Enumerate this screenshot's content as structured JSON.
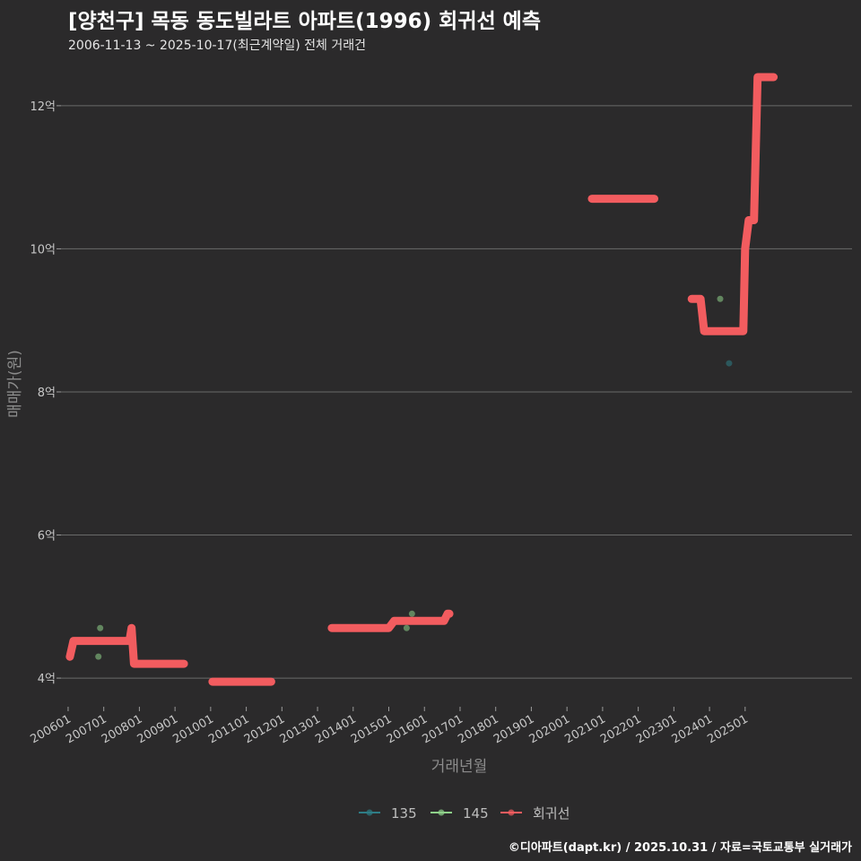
{
  "title": "[양천구] 목동 동도빌라트 아파트(1996) 회귀선 예측",
  "subtitle": "2006-11-13 ~ 2025-10-17(최근계약일) 전체 거래건",
  "caption": "©디아파트(dapt.kr) / 2025.10.31 / 자료=국토교통부 실거래가",
  "colors": {
    "background": "#2b2a2b",
    "grid": "#6a6a6a",
    "series_135": "#2e7d86",
    "series_145": "#8fd18a",
    "regression": "#f25c5f"
  },
  "chart_data": {
    "type": "scatter",
    "xlabel": "거래년월",
    "ylabel": "매매가(원)",
    "x_ticks": [
      "200601",
      "200701",
      "200801",
      "200901",
      "201001",
      "201101",
      "201201",
      "201301",
      "201401",
      "201501",
      "201601",
      "201701",
      "201801",
      "201901",
      "202001",
      "202101",
      "202201",
      "202301",
      "202401",
      "202501"
    ],
    "y_ticks": [
      {
        "value": 4,
        "label": "4억"
      },
      {
        "value": 6,
        "label": "6억"
      },
      {
        "value": 8,
        "label": "8억"
      },
      {
        "value": 10,
        "label": "10억"
      },
      {
        "value": 12,
        "label": "12억"
      }
    ],
    "ylim": [
      3.6,
      12.6
    ],
    "xlim": [
      2005.8,
      2028.0
    ],
    "series": [
      {
        "name": "135",
        "points": [
          [
            2024.55,
            8.4
          ]
        ]
      },
      {
        "name": "145",
        "points": [
          [
            2006.85,
            4.3
          ],
          [
            2006.9,
            4.7
          ],
          [
            2015.5,
            4.7
          ],
          [
            2015.65,
            4.9
          ],
          [
            2024.3,
            9.3
          ]
        ]
      }
    ],
    "regression": {
      "name": "회귀선",
      "points": [
        [
          2006.05,
          4.3
        ],
        [
          2006.15,
          4.52
        ],
        [
          2007.5,
          4.52
        ],
        [
          2007.72,
          4.52
        ],
        [
          2007.78,
          4.7
        ],
        [
          2007.85,
          4.2
        ],
        [
          2009.25,
          4.2
        ],
        [
          null,
          null
        ],
        [
          2010.05,
          3.95
        ],
        [
          2011.7,
          3.95
        ],
        [
          null,
          null
        ],
        [
          2013.4,
          4.7
        ],
        [
          2015.0,
          4.7
        ],
        [
          2015.15,
          4.8
        ],
        [
          2016.55,
          4.8
        ],
        [
          2016.65,
          4.9
        ],
        [
          2016.7,
          4.9
        ],
        [
          null,
          null
        ],
        [
          2020.7,
          10.7
        ],
        [
          2022.45,
          10.7
        ],
        [
          null,
          null
        ],
        [
          2023.5,
          9.3
        ],
        [
          2023.75,
          9.3
        ],
        [
          2023.85,
          8.85
        ],
        [
          2024.95,
          8.85
        ],
        [
          2025.0,
          10.0
        ],
        [
          2025.1,
          10.4
        ],
        [
          2025.25,
          10.4
        ],
        [
          2025.35,
          12.4
        ],
        [
          2025.8,
          12.4
        ]
      ]
    },
    "legend": {
      "position": "bottom",
      "entries": [
        "135",
        "145",
        "회귀선"
      ]
    }
  }
}
